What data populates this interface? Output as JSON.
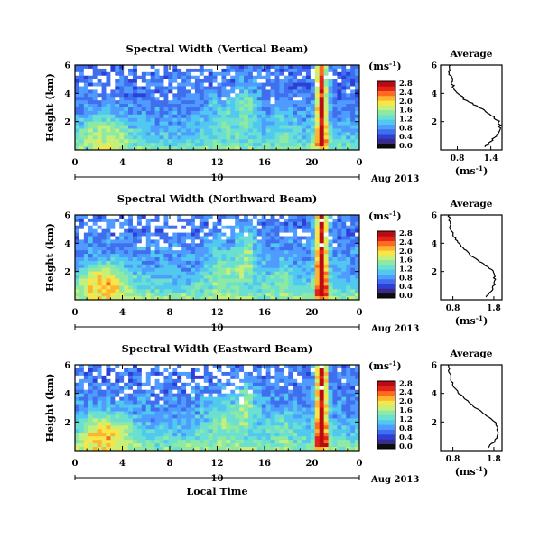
{
  "figure": {
    "xlabel": "Local Time",
    "date_label": "Aug 2013",
    "day_label": "10",
    "unit_label": "(ms",
    "unit_exp": "-1",
    "unit_close": ")"
  },
  "colors": {
    "palette": [
      "#0d0d0d",
      "#3a2a8a",
      "#2c3fd6",
      "#3f6fee",
      "#4f9bff",
      "#51c8ef",
      "#6be0d2",
      "#8ee9a2",
      "#c6f07a",
      "#f5e64a",
      "#ffb430",
      "#ff6a1f",
      "#e2231a",
      "#b80c12"
    ],
    "missing": "#ffffff"
  },
  "chart_data": [
    {
      "type": "heatmap",
      "title": "Spectral Width (Vertical Beam)",
      "xlabel": "",
      "ylabel": "Height (km)",
      "xlim": [
        0,
        24
      ],
      "ylim": [
        0,
        6
      ],
      "x_ticks": [
        "0",
        "4",
        "8",
        "12",
        "16",
        "20",
        "0"
      ],
      "y_ticks": [
        "2",
        "4",
        "6"
      ],
      "colorbar": {
        "label": "(ms-1)",
        "ticks": [
          "0.0",
          "0.4",
          "0.8",
          "1.2",
          "1.6",
          "2.0",
          "2.4",
          "2.8"
        ],
        "range": [
          0,
          3.0
        ]
      },
      "profile": {
        "title": "Average",
        "xlabel": "(ms-1)",
        "x_ticks": [
          "0.8",
          "1.4"
        ],
        "xlim": [
          0.5,
          1.6
        ],
        "y_ticks": [
          "2",
          "4",
          "6"
        ],
        "height": [
          0.2,
          0.6,
          1.0,
          1.5,
          2.0,
          2.5,
          3.0,
          3.5,
          4.0,
          4.5,
          5.0,
          5.5,
          6.0
        ],
        "width": [
          1.3,
          1.4,
          1.5,
          1.56,
          1.55,
          1.4,
          1.2,
          0.95,
          0.8,
          0.72,
          0.7,
          0.65,
          0.65
        ]
      }
    },
    {
      "type": "heatmap",
      "title": "Spectral Width (Northward Beam)",
      "xlabel": "",
      "ylabel": "Height (km)",
      "xlim": [
        0,
        24
      ],
      "ylim": [
        0,
        6
      ],
      "x_ticks": [
        "0",
        "4",
        "8",
        "12",
        "16",
        "20",
        "0"
      ],
      "y_ticks": [
        "2",
        "4",
        "6"
      ],
      "colorbar": {
        "label": "(ms-1)",
        "ticks": [
          "0.0",
          "0.4",
          "0.8",
          "1.2",
          "1.6",
          "2.0",
          "2.4",
          "2.8"
        ],
        "range": [
          0,
          3.0
        ]
      },
      "profile": {
        "title": "Average",
        "xlabel": "(ms-1)",
        "x_ticks": [
          "0.8",
          "1.8"
        ],
        "xlim": [
          0.5,
          2.0
        ],
        "y_ticks": [
          "2",
          "4",
          "6"
        ],
        "height": [
          0.2,
          0.6,
          1.0,
          1.5,
          2.0,
          2.5,
          3.0,
          3.5,
          4.0,
          4.5,
          5.0,
          5.5,
          6.0
        ],
        "width": [
          1.6,
          1.75,
          1.8,
          1.82,
          1.8,
          1.55,
          1.3,
          1.1,
          0.95,
          0.82,
          0.75,
          0.72,
          0.7
        ]
      }
    },
    {
      "type": "heatmap",
      "title": "Spectral Width (Eastward Beam)",
      "xlabel": "Local Time",
      "ylabel": "Height (km)",
      "xlim": [
        0,
        24
      ],
      "ylim": [
        0,
        6
      ],
      "x_ticks": [
        "0",
        "4",
        "8",
        "12",
        "16",
        "20",
        "0"
      ],
      "y_ticks": [
        "2",
        "4",
        "6"
      ],
      "colorbar": {
        "label": "(ms-1)",
        "ticks": [
          "0.0",
          "0.4",
          "0.8",
          "1.2",
          "1.6",
          "2.0",
          "2.4",
          "2.8"
        ],
        "range": [
          0,
          3.0
        ]
      },
      "profile": {
        "title": "Average",
        "xlabel": "(ms-1)",
        "x_ticks": [
          "0.8",
          "1.8"
        ],
        "xlim": [
          0.5,
          2.0
        ],
        "y_ticks": [
          "2",
          "4",
          "6"
        ],
        "height": [
          0.2,
          0.6,
          1.0,
          1.5,
          2.0,
          2.5,
          3.0,
          3.5,
          4.0,
          4.5,
          5.0,
          5.5,
          6.0
        ],
        "width": [
          1.65,
          1.8,
          1.9,
          1.88,
          1.85,
          1.6,
          1.35,
          1.15,
          0.95,
          0.82,
          0.75,
          0.72,
          0.7
        ]
      }
    }
  ]
}
